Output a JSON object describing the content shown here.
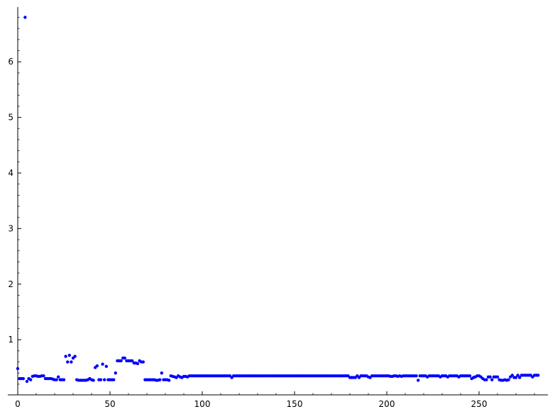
{
  "chart_data": {
    "type": "scatter",
    "title": "",
    "xlabel": "",
    "ylabel": "",
    "xlim": [
      -1,
      287
    ],
    "ylim": [
      0.145,
      6.9
    ],
    "x_ticks": [
      0,
      50,
      100,
      150,
      200,
      250
    ],
    "y_ticks": [
      1,
      2,
      3,
      4,
      5,
      6
    ],
    "grid": false,
    "legend": "none",
    "colors": {
      "points": "#0000ff",
      "axes": "#000000"
    },
    "series": [
      {
        "points": [
          [
            0,
            0.48
          ],
          [
            1,
            0.3
          ],
          [
            2,
            0.3
          ],
          [
            3,
            0.3
          ],
          [
            4,
            6.8
          ],
          [
            5,
            0.25
          ],
          [
            6,
            0.3
          ],
          [
            7,
            0.28
          ],
          [
            8,
            0.34
          ],
          [
            9,
            0.35
          ],
          [
            10,
            0.35
          ],
          [
            11,
            0.34
          ],
          [
            12,
            0.34
          ],
          [
            13,
            0.35
          ],
          [
            14,
            0.35
          ],
          [
            15,
            0.3
          ],
          [
            16,
            0.3
          ],
          [
            17,
            0.3
          ],
          [
            18,
            0.3
          ],
          [
            19,
            0.29
          ],
          [
            20,
            0.28
          ],
          [
            21,
            0.28
          ],
          [
            22,
            0.33
          ],
          [
            23,
            0.28
          ],
          [
            24,
            0.28
          ],
          [
            25,
            0.28
          ],
          [
            26,
            0.7
          ],
          [
            27,
            0.6
          ],
          [
            28,
            0.72
          ],
          [
            29,
            0.6
          ],
          [
            30,
            0.67
          ],
          [
            31,
            0.7
          ],
          [
            32,
            0.28
          ],
          [
            33,
            0.27
          ],
          [
            34,
            0.27
          ],
          [
            35,
            0.27
          ],
          [
            36,
            0.27
          ],
          [
            37,
            0.27
          ],
          [
            38,
            0.28
          ],
          [
            39,
            0.3
          ],
          [
            40,
            0.28
          ],
          [
            41,
            0.27
          ],
          [
            42,
            0.5
          ],
          [
            43,
            0.53
          ],
          [
            44,
            0.28
          ],
          [
            45,
            0.28
          ],
          [
            46,
            0.56
          ],
          [
            47,
            0.28
          ],
          [
            48,
            0.52
          ],
          [
            49,
            0.28
          ],
          [
            50,
            0.28
          ],
          [
            51,
            0.28
          ],
          [
            52,
            0.28
          ],
          [
            53,
            0.4
          ],
          [
            54,
            0.62
          ],
          [
            55,
            0.62
          ],
          [
            56,
            0.62
          ],
          [
            57,
            0.67
          ],
          [
            58,
            0.67
          ],
          [
            59,
            0.62
          ],
          [
            60,
            0.62
          ],
          [
            61,
            0.62
          ],
          [
            62,
            0.62
          ],
          [
            63,
            0.58
          ],
          [
            64,
            0.58
          ],
          [
            65,
            0.57
          ],
          [
            66,
            0.62
          ],
          [
            67,
            0.6
          ],
          [
            68,
            0.6
          ],
          [
            69,
            0.28
          ],
          [
            70,
            0.28
          ],
          [
            71,
            0.28
          ],
          [
            72,
            0.28
          ],
          [
            73,
            0.28
          ],
          [
            74,
            0.28
          ],
          [
            75,
            0.27
          ],
          [
            76,
            0.27
          ],
          [
            77,
            0.28
          ],
          [
            78,
            0.4
          ],
          [
            79,
            0.28
          ],
          [
            80,
            0.28
          ],
          [
            81,
            0.28
          ],
          [
            82,
            0.27
          ],
          [
            83,
            0.35
          ],
          [
            84,
            0.34
          ],
          [
            85,
            0.33
          ],
          [
            86,
            0.32
          ],
          [
            87,
            0.35
          ],
          [
            88,
            0.33
          ],
          [
            89,
            0.32
          ],
          [
            90,
            0.34
          ],
          [
            91,
            0.34
          ],
          [
            92,
            0.33
          ],
          [
            93,
            0.35
          ],
          [
            94,
            0.35
          ],
          [
            95,
            0.35
          ],
          [
            96,
            0.35
          ],
          [
            97,
            0.35
          ],
          [
            98,
            0.35
          ],
          [
            99,
            0.35
          ],
          [
            100,
            0.35
          ],
          [
            101,
            0.35
          ],
          [
            102,
            0.35
          ],
          [
            103,
            0.35
          ],
          [
            104,
            0.35
          ],
          [
            105,
            0.35
          ],
          [
            106,
            0.35
          ],
          [
            107,
            0.35
          ],
          [
            108,
            0.35
          ],
          [
            109,
            0.35
          ],
          [
            110,
            0.35
          ],
          [
            111,
            0.35
          ],
          [
            112,
            0.35
          ],
          [
            113,
            0.35
          ],
          [
            114,
            0.35
          ],
          [
            115,
            0.35
          ],
          [
            116,
            0.32
          ],
          [
            117,
            0.35
          ],
          [
            118,
            0.35
          ],
          [
            119,
            0.35
          ],
          [
            120,
            0.35
          ],
          [
            121,
            0.35
          ],
          [
            122,
            0.35
          ],
          [
            123,
            0.35
          ],
          [
            124,
            0.35
          ],
          [
            125,
            0.35
          ],
          [
            126,
            0.35
          ],
          [
            127,
            0.35
          ],
          [
            128,
            0.35
          ],
          [
            129,
            0.35
          ],
          [
            130,
            0.35
          ],
          [
            131,
            0.35
          ],
          [
            132,
            0.35
          ],
          [
            133,
            0.35
          ],
          [
            134,
            0.35
          ],
          [
            135,
            0.35
          ],
          [
            136,
            0.35
          ],
          [
            137,
            0.35
          ],
          [
            138,
            0.35
          ],
          [
            139,
            0.35
          ],
          [
            140,
            0.35
          ],
          [
            141,
            0.35
          ],
          [
            142,
            0.35
          ],
          [
            143,
            0.35
          ],
          [
            144,
            0.35
          ],
          [
            145,
            0.35
          ],
          [
            146,
            0.35
          ],
          [
            147,
            0.35
          ],
          [
            148,
            0.35
          ],
          [
            149,
            0.35
          ],
          [
            150,
            0.35
          ],
          [
            151,
            0.35
          ],
          [
            152,
            0.35
          ],
          [
            153,
            0.35
          ],
          [
            154,
            0.35
          ],
          [
            155,
            0.35
          ],
          [
            156,
            0.35
          ],
          [
            157,
            0.35
          ],
          [
            158,
            0.35
          ],
          [
            159,
            0.35
          ],
          [
            160,
            0.35
          ],
          [
            161,
            0.35
          ],
          [
            162,
            0.35
          ],
          [
            163,
            0.35
          ],
          [
            164,
            0.35
          ],
          [
            165,
            0.35
          ],
          [
            166,
            0.35
          ],
          [
            167,
            0.35
          ],
          [
            168,
            0.35
          ],
          [
            169,
            0.35
          ],
          [
            170,
            0.35
          ],
          [
            171,
            0.35
          ],
          [
            172,
            0.35
          ],
          [
            173,
            0.35
          ],
          [
            174,
            0.35
          ],
          [
            175,
            0.35
          ],
          [
            176,
            0.35
          ],
          [
            177,
            0.35
          ],
          [
            178,
            0.35
          ],
          [
            179,
            0.35
          ],
          [
            180,
            0.32
          ],
          [
            181,
            0.32
          ],
          [
            182,
            0.32
          ],
          [
            183,
            0.32
          ],
          [
            184,
            0.35
          ],
          [
            185,
            0.32
          ],
          [
            186,
            0.35
          ],
          [
            187,
            0.35
          ],
          [
            188,
            0.35
          ],
          [
            189,
            0.35
          ],
          [
            190,
            0.33
          ],
          [
            191,
            0.32
          ],
          [
            192,
            0.35
          ],
          [
            193,
            0.35
          ],
          [
            194,
            0.35
          ],
          [
            195,
            0.35
          ],
          [
            196,
            0.35
          ],
          [
            197,
            0.35
          ],
          [
            198,
            0.35
          ],
          [
            199,
            0.35
          ],
          [
            200,
            0.35
          ],
          [
            201,
            0.35
          ],
          [
            202,
            0.34
          ],
          [
            203,
            0.34
          ],
          [
            204,
            0.35
          ],
          [
            205,
            0.35
          ],
          [
            206,
            0.34
          ],
          [
            207,
            0.35
          ],
          [
            208,
            0.34
          ],
          [
            209,
            0.35
          ],
          [
            210,
            0.35
          ],
          [
            211,
            0.35
          ],
          [
            212,
            0.35
          ],
          [
            213,
            0.35
          ],
          [
            214,
            0.35
          ],
          [
            215,
            0.35
          ],
          [
            216,
            0.35
          ],
          [
            217,
            0.27
          ],
          [
            218,
            0.35
          ],
          [
            219,
            0.35
          ],
          [
            220,
            0.35
          ],
          [
            221,
            0.35
          ],
          [
            222,
            0.33
          ],
          [
            223,
            0.35
          ],
          [
            224,
            0.35
          ],
          [
            225,
            0.35
          ],
          [
            226,
            0.35
          ],
          [
            227,
            0.35
          ],
          [
            228,
            0.35
          ],
          [
            229,
            0.33
          ],
          [
            230,
            0.35
          ],
          [
            231,
            0.35
          ],
          [
            232,
            0.35
          ],
          [
            233,
            0.33
          ],
          [
            234,
            0.35
          ],
          [
            235,
            0.35
          ],
          [
            236,
            0.35
          ],
          [
            237,
            0.35
          ],
          [
            238,
            0.35
          ],
          [
            239,
            0.33
          ],
          [
            240,
            0.35
          ],
          [
            241,
            0.35
          ],
          [
            242,
            0.35
          ],
          [
            243,
            0.35
          ],
          [
            244,
            0.35
          ],
          [
            245,
            0.35
          ],
          [
            246,
            0.3
          ],
          [
            247,
            0.32
          ],
          [
            248,
            0.33
          ],
          [
            249,
            0.35
          ],
          [
            250,
            0.35
          ],
          [
            251,
            0.33
          ],
          [
            252,
            0.3
          ],
          [
            253,
            0.28
          ],
          [
            254,
            0.28
          ],
          [
            255,
            0.33
          ],
          [
            256,
            0.33
          ],
          [
            257,
            0.28
          ],
          [
            258,
            0.33
          ],
          [
            259,
            0.33
          ],
          [
            260,
            0.33
          ],
          [
            261,
            0.28
          ],
          [
            262,
            0.27
          ],
          [
            263,
            0.27
          ],
          [
            264,
            0.28
          ],
          [
            265,
            0.27
          ],
          [
            266,
            0.28
          ],
          [
            267,
            0.33
          ],
          [
            268,
            0.36
          ],
          [
            269,
            0.32
          ],
          [
            270,
            0.32
          ],
          [
            271,
            0.36
          ],
          [
            272,
            0.32
          ],
          [
            273,
            0.36
          ],
          [
            274,
            0.36
          ],
          [
            275,
            0.36
          ],
          [
            276,
            0.36
          ],
          [
            277,
            0.36
          ],
          [
            278,
            0.36
          ],
          [
            279,
            0.33
          ],
          [
            280,
            0.36
          ],
          [
            281,
            0.36
          ],
          [
            282,
            0.36
          ]
        ]
      }
    ]
  }
}
